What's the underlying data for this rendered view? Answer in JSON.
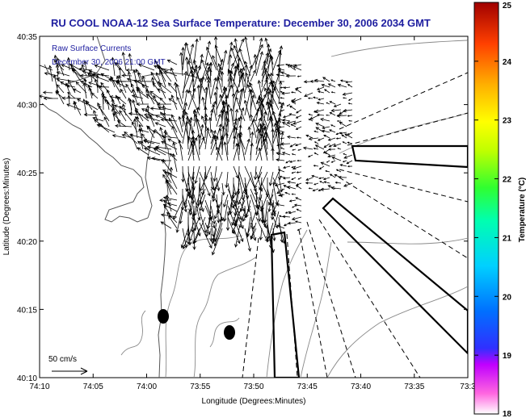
{
  "chart_data": {
    "type": "vector-field map",
    "title": "RU COOL  NOAA-12  Sea Surface Temperature:  December 30, 2006 2034 GMT",
    "legend": {
      "line1": "Raw Surface Currents",
      "line2": "December 30, 2006 21:00 GMT"
    },
    "scale_label": "50 cm/s",
    "xlabel": "Longitude (Degrees:Minutes)",
    "ylabel": "Latitude (Degrees:Minutes)",
    "x_ticks": [
      "74:10",
      "74:05",
      "74:00",
      "73:55",
      "73:50",
      "73:45",
      "73:40",
      "73:35",
      "73:3"
    ],
    "y_ticks": [
      "40:10",
      "40:15",
      "40:20",
      "40:25",
      "40:30",
      "40:35"
    ],
    "xlim_minutes_west": [
      10,
      30
    ],
    "ylim_minutes_north": [
      10,
      35
    ],
    "colorbar": {
      "label": "Temperature (°C)",
      "ticks": [
        18,
        19,
        20,
        21,
        22,
        23,
        24,
        25
      ],
      "range": [
        18,
        25
      ]
    }
  }
}
